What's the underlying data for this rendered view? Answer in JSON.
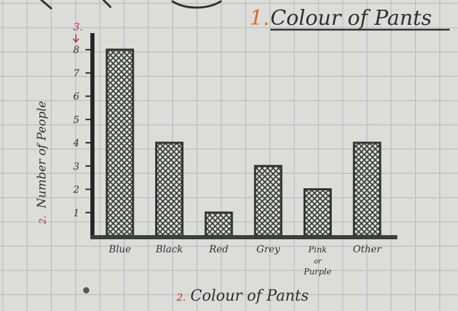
{
  "chart_data": {
    "type": "bar",
    "title": "Colour of Pants",
    "title_marker": "1.",
    "xlabel": "Colour of Pants",
    "xlabel_marker": "2.",
    "ylabel": "Number of People",
    "ylabel_marker": "2.",
    "yaxis_marker": "3.",
    "categories": [
      {
        "lines": [
          "Blue"
        ]
      },
      {
        "lines": [
          "Black"
        ]
      },
      {
        "lines": [
          "Red"
        ]
      },
      {
        "lines": [
          "Grey"
        ]
      },
      {
        "lines": [
          "Pink",
          "or",
          "Purple"
        ]
      },
      {
        "lines": [
          "Other"
        ]
      }
    ],
    "values": [
      8,
      4,
      1,
      3,
      2,
      4
    ],
    "yticks": [
      1,
      2,
      3,
      4,
      5,
      6,
      7,
      8
    ],
    "ylim": [
      0,
      8
    ],
    "grid": true,
    "colors": {
      "paper": "#dcdcd8",
      "grid": "#b9bdc2",
      "axis": "#262626",
      "bar_fill": "#e3e3dc",
      "bar_hatch": "#2e3431",
      "ink": "#2f2f2f",
      "red_marker": "#b8272f",
      "orange_marker": "#e06a2a",
      "magenta_marker": "#b02a5e"
    }
  }
}
